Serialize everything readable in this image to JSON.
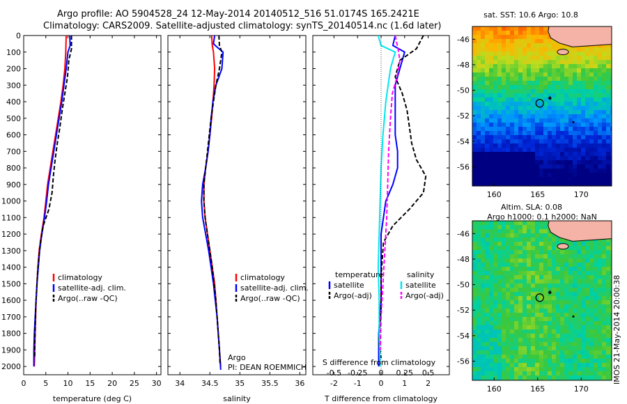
{
  "header": {
    "line1": "Argo profile: AO 5904528_24 12-May-2014 20140512_516 51.0174S 165.2421E",
    "line2": "Climatology: CARS2009. Satellite-adjusted climatology: synTS_20140514.nc (1.6d later)"
  },
  "colors": {
    "climatology": "#ff0000",
    "satellite": "#0000ff",
    "argo": "#000000",
    "salinity_sat": "#00e5ee",
    "salinity_argo": "#ff00ff"
  },
  "footer_stamp": "IMOS 21-May-2014 20:00:38",
  "chart_data": [
    {
      "type": "line",
      "xlabel": "temperature (deg C)",
      "xlim": [
        0,
        31
      ],
      "xticks": [
        0,
        5,
        10,
        15,
        20,
        25,
        30
      ],
      "ylim": [
        2050,
        0
      ],
      "yticks": [
        0,
        100,
        200,
        300,
        400,
        500,
        600,
        700,
        800,
        900,
        1000,
        1100,
        1200,
        1300,
        1400,
        1500,
        1600,
        1700,
        1800,
        1900,
        2000
      ],
      "legend": [
        "climatology",
        "satellite-adj. clim.",
        "Argo(..raw -QC)"
      ],
      "series": [
        {
          "name": "climatology",
          "style": "solid",
          "color": "#ff0000",
          "points": [
            [
              9.6,
              0
            ],
            [
              9.5,
              100
            ],
            [
              9.3,
              200
            ],
            [
              8.9,
              300
            ],
            [
              8.4,
              400
            ],
            [
              7.8,
              500
            ],
            [
              7.2,
              600
            ],
            [
              6.6,
              700
            ],
            [
              6.0,
              800
            ],
            [
              5.4,
              900
            ],
            [
              5.0,
              1000
            ],
            [
              4.6,
              1100
            ],
            [
              4.0,
              1200
            ],
            [
              3.5,
              1300
            ],
            [
              3.2,
              1400
            ],
            [
              3.0,
              1500
            ],
            [
              2.8,
              1600
            ],
            [
              2.7,
              1700
            ],
            [
              2.6,
              1800
            ],
            [
              2.5,
              1900
            ],
            [
              2.4,
              2000
            ]
          ]
        },
        {
          "name": "satellite-adj. clim.",
          "style": "solid",
          "color": "#0000ff",
          "points": [
            [
              10.4,
              0
            ],
            [
              10.5,
              60
            ],
            [
              10.0,
              100
            ],
            [
              9.6,
              200
            ],
            [
              9.1,
              300
            ],
            [
              8.6,
              400
            ],
            [
              8.0,
              500
            ],
            [
              7.4,
              600
            ],
            [
              6.8,
              700
            ],
            [
              6.2,
              800
            ],
            [
              5.6,
              900
            ],
            [
              5.2,
              1000
            ],
            [
              4.7,
              1100
            ],
            [
              4.1,
              1200
            ],
            [
              3.6,
              1300
            ],
            [
              3.3,
              1400
            ],
            [
              3.0,
              1500
            ],
            [
              2.8,
              1600
            ],
            [
              2.6,
              1700
            ],
            [
              2.4,
              1800
            ],
            [
              2.3,
              1900
            ],
            [
              2.3,
              2000
            ]
          ]
        },
        {
          "name": "Argo(..raw -QC)",
          "style": "dashed",
          "color": "#000000",
          "points": [
            [
              10.8,
              0
            ],
            [
              10.8,
              80
            ],
            [
              10.2,
              150
            ],
            [
              9.9,
              250
            ],
            [
              9.3,
              350
            ],
            [
              8.7,
              450
            ],
            [
              8.2,
              550
            ],
            [
              7.6,
              650
            ],
            [
              7.1,
              750
            ],
            [
              6.7,
              850
            ],
            [
              6.4,
              950
            ],
            [
              5.7,
              1050
            ],
            [
              4.4,
              1150
            ],
            [
              3.8,
              1250
            ],
            [
              3.4,
              1350
            ],
            [
              3.1,
              1450
            ],
            [
              2.9,
              1550
            ],
            [
              2.7,
              1650
            ],
            [
              2.6,
              1750
            ],
            [
              2.5,
              1850
            ],
            [
              2.5,
              1950
            ]
          ]
        }
      ]
    },
    {
      "type": "line",
      "xlabel": "salinity",
      "xlim": [
        33.8,
        36.1
      ],
      "xticks": [
        34,
        34.5,
        35,
        35.5,
        36
      ],
      "ylim": [
        2050,
        0
      ],
      "legend": [
        "climatology",
        "satellite-adj. clim.",
        "Argo(..raw -QC)"
      ],
      "annotation": [
        "Argo",
        "PI: DEAN ROEMMICH"
      ],
      "series": [
        {
          "name": "climatology",
          "style": "solid",
          "color": "#ff0000",
          "points": [
            [
              34.53,
              0
            ],
            [
              34.54,
              60
            ],
            [
              34.56,
              100
            ],
            [
              34.58,
              200
            ],
            [
              34.57,
              300
            ],
            [
              34.55,
              400
            ],
            [
              34.53,
              500
            ],
            [
              34.5,
              600
            ],
            [
              34.47,
              700
            ],
            [
              34.43,
              800
            ],
            [
              34.4,
              900
            ],
            [
              34.4,
              1000
            ],
            [
              34.42,
              1100
            ],
            [
              34.46,
              1200
            ],
            [
              34.5,
              1300
            ],
            [
              34.54,
              1400
            ],
            [
              34.58,
              1500
            ],
            [
              34.6,
              1600
            ],
            [
              34.62,
              1700
            ],
            [
              34.64,
              1800
            ],
            [
              34.66,
              1900
            ],
            [
              34.68,
              2000
            ]
          ]
        },
        {
          "name": "satellite-adj. clim.",
          "style": "solid",
          "color": "#0000ff",
          "points": [
            [
              34.58,
              0
            ],
            [
              34.56,
              50
            ],
            [
              34.62,
              70
            ],
            [
              34.72,
              100
            ],
            [
              34.7,
              200
            ],
            [
              34.6,
              300
            ],
            [
              34.55,
              400
            ],
            [
              34.52,
              500
            ],
            [
              34.5,
              600
            ],
            [
              34.47,
              700
            ],
            [
              34.43,
              800
            ],
            [
              34.38,
              900
            ],
            [
              34.36,
              1000
            ],
            [
              34.38,
              1100
            ],
            [
              34.43,
              1200
            ],
            [
              34.48,
              1300
            ],
            [
              34.52,
              1400
            ],
            [
              34.56,
              1500
            ],
            [
              34.59,
              1600
            ],
            [
              34.62,
              1700
            ],
            [
              34.64,
              1800
            ],
            [
              34.66,
              1900
            ],
            [
              34.68,
              2020
            ]
          ]
        },
        {
          "name": "Argo(..raw -QC)",
          "style": "dashed",
          "color": "#000000",
          "points": [
            [
              34.65,
              0
            ],
            [
              34.66,
              60
            ],
            [
              34.7,
              100
            ],
            [
              34.66,
              200
            ],
            [
              34.6,
              300
            ],
            [
              34.56,
              400
            ],
            [
              34.52,
              500
            ],
            [
              34.49,
              600
            ],
            [
              34.46,
              700
            ],
            [
              34.43,
              800
            ],
            [
              34.4,
              900
            ],
            [
              34.4,
              1000
            ],
            [
              34.42,
              1100
            ],
            [
              34.46,
              1200
            ],
            [
              34.5,
              1300
            ],
            [
              34.54,
              1400
            ],
            [
              34.57,
              1500
            ],
            [
              34.6,
              1600
            ],
            [
              34.62,
              1700
            ],
            [
              34.64,
              1800
            ],
            [
              34.66,
              1900
            ],
            [
              34.67,
              1990
            ]
          ]
        }
      ]
    },
    {
      "type": "line",
      "xlabel": "T difference from climatology",
      "xlabel_top": "S difference from climatology",
      "xlim": [
        -2.9,
        2.9
      ],
      "xticks": [
        -2,
        -1,
        0,
        1,
        2
      ],
      "xticks_top": [
        -0.5,
        -0.25,
        0,
        0.25,
        0.5
      ],
      "ylim": [
        2050,
        0
      ],
      "legend_temperature": {
        "title": "temperature",
        "entries": [
          "satellite",
          "Argo(-adj)"
        ]
      },
      "legend_salinity": {
        "title": "salinity",
        "entries": [
          "satellite",
          "Argo(-adj)"
        ]
      },
      "series": [
        {
          "name": "T satellite",
          "style": "solid",
          "color": "#0000ff",
          "points": [
            [
              0.6,
              0
            ],
            [
              0.5,
              60
            ],
            [
              1.0,
              100
            ],
            [
              0.8,
              200
            ],
            [
              0.6,
              300
            ],
            [
              0.6,
              400
            ],
            [
              0.6,
              500
            ],
            [
              0.6,
              600
            ],
            [
              0.7,
              700
            ],
            [
              0.7,
              800
            ],
            [
              0.5,
              900
            ],
            [
              0.2,
              1000
            ],
            [
              0.1,
              1100
            ],
            [
              0.0,
              1200
            ],
            [
              0.0,
              1400
            ],
            [
              0.0,
              1600
            ],
            [
              -0.1,
              1800
            ],
            [
              -0.1,
              2000
            ]
          ]
        },
        {
          "name": "T Argo(-adj)",
          "style": "dashed",
          "color": "#000000",
          "points": [
            [
              1.8,
              0
            ],
            [
              1.5,
              80
            ],
            [
              0.8,
              150
            ],
            [
              0.6,
              250
            ],
            [
              0.9,
              350
            ],
            [
              1.1,
              450
            ],
            [
              1.2,
              550
            ],
            [
              1.3,
              650
            ],
            [
              1.5,
              750
            ],
            [
              1.9,
              850
            ],
            [
              1.8,
              950
            ],
            [
              1.2,
              1050
            ],
            [
              0.5,
              1150
            ],
            [
              0.1,
              1250
            ],
            [
              0.0,
              1450
            ],
            [
              0.0,
              1650
            ],
            [
              -0.1,
              1850
            ],
            [
              0.0,
              1950
            ]
          ]
        },
        {
          "name": "S satellite",
          "style": "solid",
          "color": "#00e5ee",
          "points": [
            [
              -0.03,
              0
            ],
            [
              0.0,
              60
            ],
            [
              0.15,
              100
            ],
            [
              0.1,
              200
            ],
            [
              0.05,
              400
            ],
            [
              0.02,
              600
            ],
            [
              0.0,
              800
            ],
            [
              -0.01,
              1000
            ],
            [
              -0.02,
              1200
            ],
            [
              -0.03,
              1400
            ],
            [
              -0.02,
              1600
            ],
            [
              -0.02,
              1800
            ],
            [
              -0.01,
              2000
            ]
          ]
        },
        {
          "name": "S Argo(-adj)",
          "style": "dashed",
          "color": "#ff00ff",
          "points": [
            [
              0.15,
              0
            ],
            [
              0.18,
              80
            ],
            [
              0.2,
              150
            ],
            [
              0.17,
              250
            ],
            [
              0.12,
              350
            ],
            [
              0.1,
              500
            ],
            [
              0.08,
              700
            ],
            [
              0.07,
              900
            ],
            [
              0.06,
              1100
            ],
            [
              0.04,
              1300
            ],
            [
              0.02,
              1500
            ],
            [
              0.0,
              1700
            ],
            [
              -0.01,
              1900
            ]
          ]
        }
      ]
    },
    {
      "type": "heatmap",
      "title": "sat. SST: 10.6 Argo: 10.8",
      "xlim": [
        157.5,
        173.5
      ],
      "ylim": [
        -57.5,
        -45
      ],
      "xticks": [
        160,
        165,
        170
      ],
      "yticks": [
        -46,
        -48,
        -50,
        -52,
        -54,
        -56
      ],
      "marker": {
        "lon": 165.24,
        "lat": -51.02
      }
    },
    {
      "type": "heatmap",
      "title": "Altim. SLA: 0.08",
      "subtitle": "Argo h1000: 0.1 h2000: NaN",
      "xlim": [
        157.5,
        173.5
      ],
      "ylim": [
        -57.5,
        -45
      ],
      "xticks": [
        160,
        165,
        170
      ],
      "yticks": [
        -46,
        -48,
        -50,
        -52,
        -54,
        -56
      ],
      "marker": {
        "lon": 165.24,
        "lat": -51.02
      }
    }
  ]
}
